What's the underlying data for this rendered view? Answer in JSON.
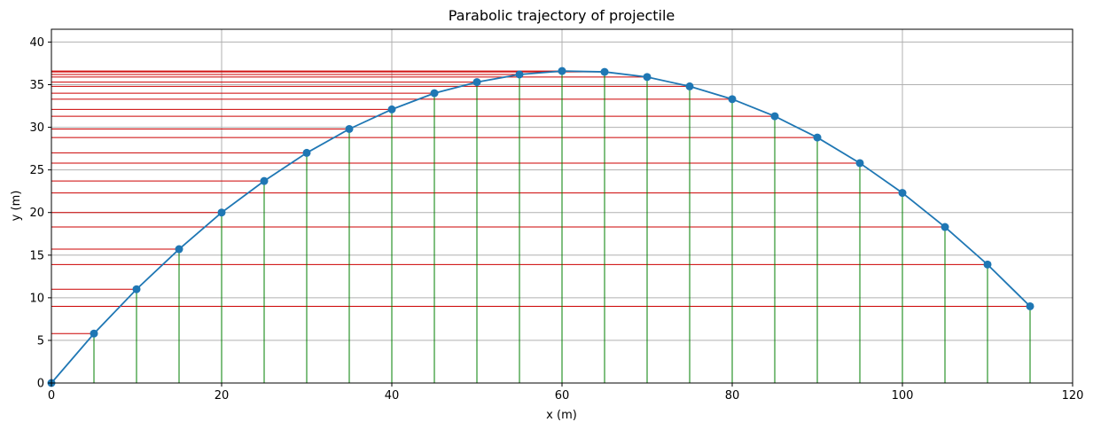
{
  "chart_data": {
    "type": "line",
    "title": "Parabolic trajectory of projectile",
    "xlabel": "x (m)",
    "ylabel": "y (m)",
    "xlim": [
      0,
      120
    ],
    "ylim": [
      0,
      41.5
    ],
    "xticks": [
      0,
      20,
      40,
      60,
      80,
      100,
      120
    ],
    "yticks": [
      0,
      5,
      10,
      15,
      20,
      25,
      30,
      35,
      40
    ],
    "grid": true,
    "series": [
      {
        "x": [
          0,
          5,
          10,
          15,
          20,
          25,
          30,
          35,
          40,
          45,
          50,
          55,
          60,
          65,
          70,
          75,
          80,
          85,
          90,
          95,
          100,
          105,
          110,
          115
        ],
        "values": [
          0,
          5.8,
          11.0,
          15.7,
          20.0,
          23.7,
          27.0,
          29.8,
          32.1,
          34.0,
          35.3,
          36.2,
          36.6,
          36.5,
          35.9,
          34.8,
          33.3,
          31.3,
          28.8,
          25.8,
          22.3,
          18.3,
          13.9,
          9.0
        ]
      }
    ],
    "guides": {
      "vertical_to_x_axis": true,
      "horizontal_to_y_axis": true
    },
    "colors": {
      "line": "#1f77b4",
      "marker": "#1f77b4",
      "vertical_guides": "#007f00",
      "horizontal_guides": "#cc0000",
      "grid": "#b0b0b0"
    }
  }
}
